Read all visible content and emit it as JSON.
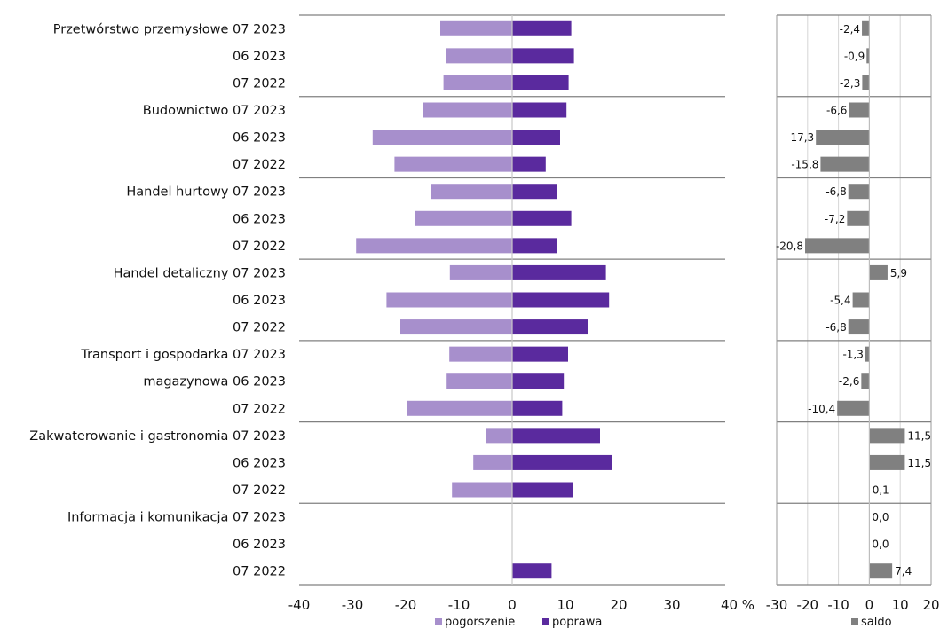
{
  "chart_data": [
    {
      "type": "bar",
      "orientation": "horizontal",
      "categories": [
        "Przetwórstwo przemysłowe 07 2023",
        "06 2023",
        "07 2022",
        "Budownictwo 07 2023",
        "06 2023",
        "07 2022",
        "Handel hurtowy 07 2023",
        "06 2023",
        "07 2022",
        "Handel detaliczny 07 2023",
        "06 2023",
        "07 2022",
        "Transport i gospodarka 07 2023",
        "magazynowa 06 2023",
        "07 2022",
        "Zakwaterowanie i gastronomia 07 2023",
        "06 2023",
        "07 2022",
        "Informacja i komunikacja 07 2023",
        "06 2023",
        "07 2022"
      ],
      "series": [
        {
          "name": "pogorszenie",
          "color": "#a78fcc",
          "values": [
            -13.5,
            -12.5,
            -12.9,
            -16.8,
            -26.2,
            -22.1,
            -15.3,
            -18.3,
            -29.3,
            -11.7,
            -23.6,
            -21.0,
            -11.8,
            -12.3,
            -19.8,
            -5.0,
            -7.3,
            -11.3,
            0,
            0,
            0
          ]
        },
        {
          "name": "poprawa",
          "color": "#5a2a9e",
          "values": [
            11.1,
            11.6,
            10.6,
            10.2,
            9.0,
            6.3,
            8.4,
            11.1,
            8.5,
            17.6,
            18.2,
            14.2,
            10.5,
            9.7,
            9.4,
            16.5,
            18.8,
            11.4,
            0,
            0,
            7.4
          ]
        }
      ],
      "xlim": [
        -40,
        40
      ],
      "xticks": [
        "-40",
        "-30",
        "-20",
        "-10",
        "0",
        "10",
        "20",
        "30",
        "40 %"
      ],
      "grid": false
    },
    {
      "type": "bar",
      "orientation": "horizontal",
      "series": [
        {
          "name": "saldo",
          "color": "#808080",
          "values": [
            -2.4,
            -0.9,
            -2.3,
            -6.6,
            -17.3,
            -15.8,
            -6.8,
            -7.2,
            -20.8,
            5.9,
            -5.4,
            -6.8,
            -1.3,
            -2.6,
            -10.4,
            11.5,
            11.5,
            0.1,
            0.0,
            0.0,
            7.4
          ],
          "labels": [
            "-2,4",
            "-0,9",
            "-2,3",
            "-6,6",
            "-17,3",
            "-15,8",
            "-6,8",
            "-7,2",
            "-20,8",
            "5,9",
            "-5,4",
            "-6,8",
            "-1,3",
            "-2,6",
            "-10,4",
            "11,5",
            "11,5",
            "0,1",
            "0,0",
            "0,0",
            "7,4"
          ]
        }
      ],
      "xlim": [
        -30,
        20
      ],
      "xticks": [
        "-30",
        "-20",
        "-10",
        "0",
        "10",
        "20"
      ],
      "grid": true
    }
  ]
}
